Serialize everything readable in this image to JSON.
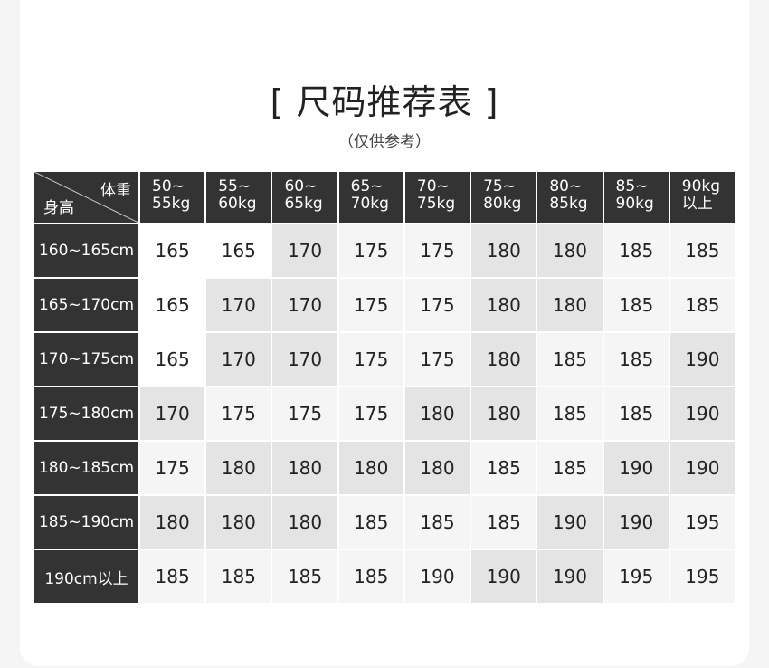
{
  "title": "[ 尺码推荐表 ]",
  "subtitle": "（仅供参考）",
  "table": {
    "corner_weight": "体重",
    "corner_height": "身高",
    "columns": [
      [
        "50~",
        "55kg"
      ],
      [
        "55~",
        "60kg"
      ],
      [
        "60~",
        "65kg"
      ],
      [
        "65~",
        "70kg"
      ],
      [
        "70~",
        "75kg"
      ],
      [
        "75~",
        "80kg"
      ],
      [
        "80~",
        "85kg"
      ],
      [
        "85~",
        "90kg"
      ],
      [
        "90kg",
        "以上"
      ]
    ],
    "rows": [
      {
        "label": "160~165cm",
        "values": [
          "165",
          "165",
          "170",
          "175",
          "175",
          "180",
          "180",
          "185",
          "185"
        ],
        "shade": [
          0,
          0,
          2,
          1,
          1,
          2,
          2,
          1,
          1
        ]
      },
      {
        "label": "165~170cm",
        "values": [
          "165",
          "170",
          "170",
          "175",
          "175",
          "180",
          "180",
          "185",
          "185"
        ],
        "shade": [
          0,
          2,
          2,
          1,
          1,
          2,
          2,
          1,
          1
        ]
      },
      {
        "label": "170~175cm",
        "values": [
          "165",
          "170",
          "170",
          "175",
          "175",
          "180",
          "185",
          "185",
          "190"
        ],
        "shade": [
          0,
          2,
          2,
          1,
          1,
          2,
          1,
          1,
          2
        ]
      },
      {
        "label": "175~180cm",
        "values": [
          "170",
          "175",
          "175",
          "175",
          "180",
          "180",
          "185",
          "185",
          "190"
        ],
        "shade": [
          2,
          1,
          1,
          1,
          2,
          2,
          1,
          1,
          2
        ]
      },
      {
        "label": "180~185cm",
        "values": [
          "175",
          "180",
          "180",
          "180",
          "180",
          "185",
          "185",
          "190",
          "190"
        ],
        "shade": [
          1,
          2,
          2,
          2,
          2,
          1,
          1,
          2,
          2
        ]
      },
      {
        "label": "185~190cm",
        "values": [
          "180",
          "180",
          "180",
          "185",
          "185",
          "185",
          "190",
          "190",
          "195"
        ],
        "shade": [
          2,
          2,
          2,
          1,
          1,
          1,
          2,
          2,
          1
        ]
      },
      {
        "label": "190cm以上",
        "values": [
          "185",
          "185",
          "185",
          "185",
          "190",
          "190",
          "190",
          "195",
          "195"
        ],
        "shade": [
          1,
          1,
          1,
          1,
          1,
          2,
          2,
          1,
          1
        ]
      }
    ],
    "colors": {
      "header": "#333333",
      "white": "#ffffff",
      "light": "#f5f5f5",
      "gray": "#e4e4e4"
    }
  }
}
